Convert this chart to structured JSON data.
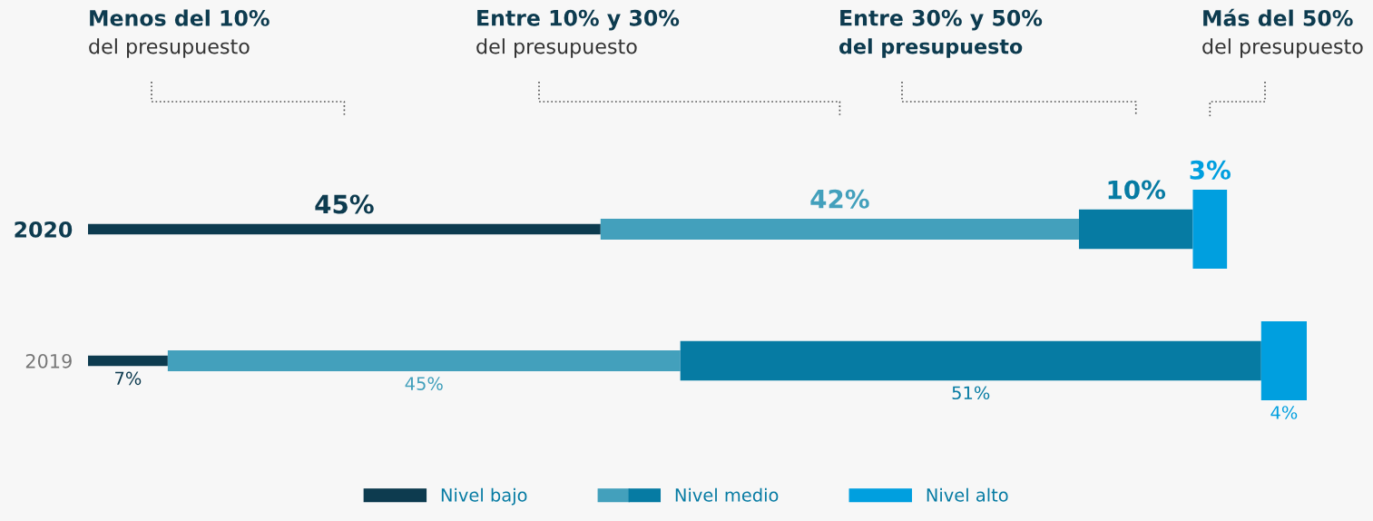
{
  "chart_data": {
    "type": "bar",
    "orientation": "horizontal",
    "stacked": true,
    "categories": [
      "2020",
      "2019"
    ],
    "series": [
      {
        "name": "Nivel bajo",
        "color": "#0d3b4f",
        "values": [
          45,
          7
        ],
        "value_labels": [
          "45%",
          "7%"
        ]
      },
      {
        "color": "#43a0bc",
        "values": [
          42,
          45
        ],
        "value_labels": [
          "42%",
          "45%"
        ]
      },
      {
        "name": "Nivel medio",
        "color": "#067ba3",
        "values": [
          10,
          51
        ],
        "value_labels": [
          "10%",
          "51%"
        ]
      },
      {
        "name": "Nivel alto",
        "color": "#009fdf",
        "values": [
          3,
          4
        ],
        "value_labels": [
          "3%",
          "4%"
        ]
      }
    ],
    "annotations": [
      "Menos del 10%",
      "del presupuesto",
      "Entre 10% y 30%",
      "del presupuesto",
      "Entre 30% y 50%",
      "del presupuesto",
      "Más del 50%",
      "del presupuesto"
    ],
    "legend": "bottom",
    "grid": false
  }
}
